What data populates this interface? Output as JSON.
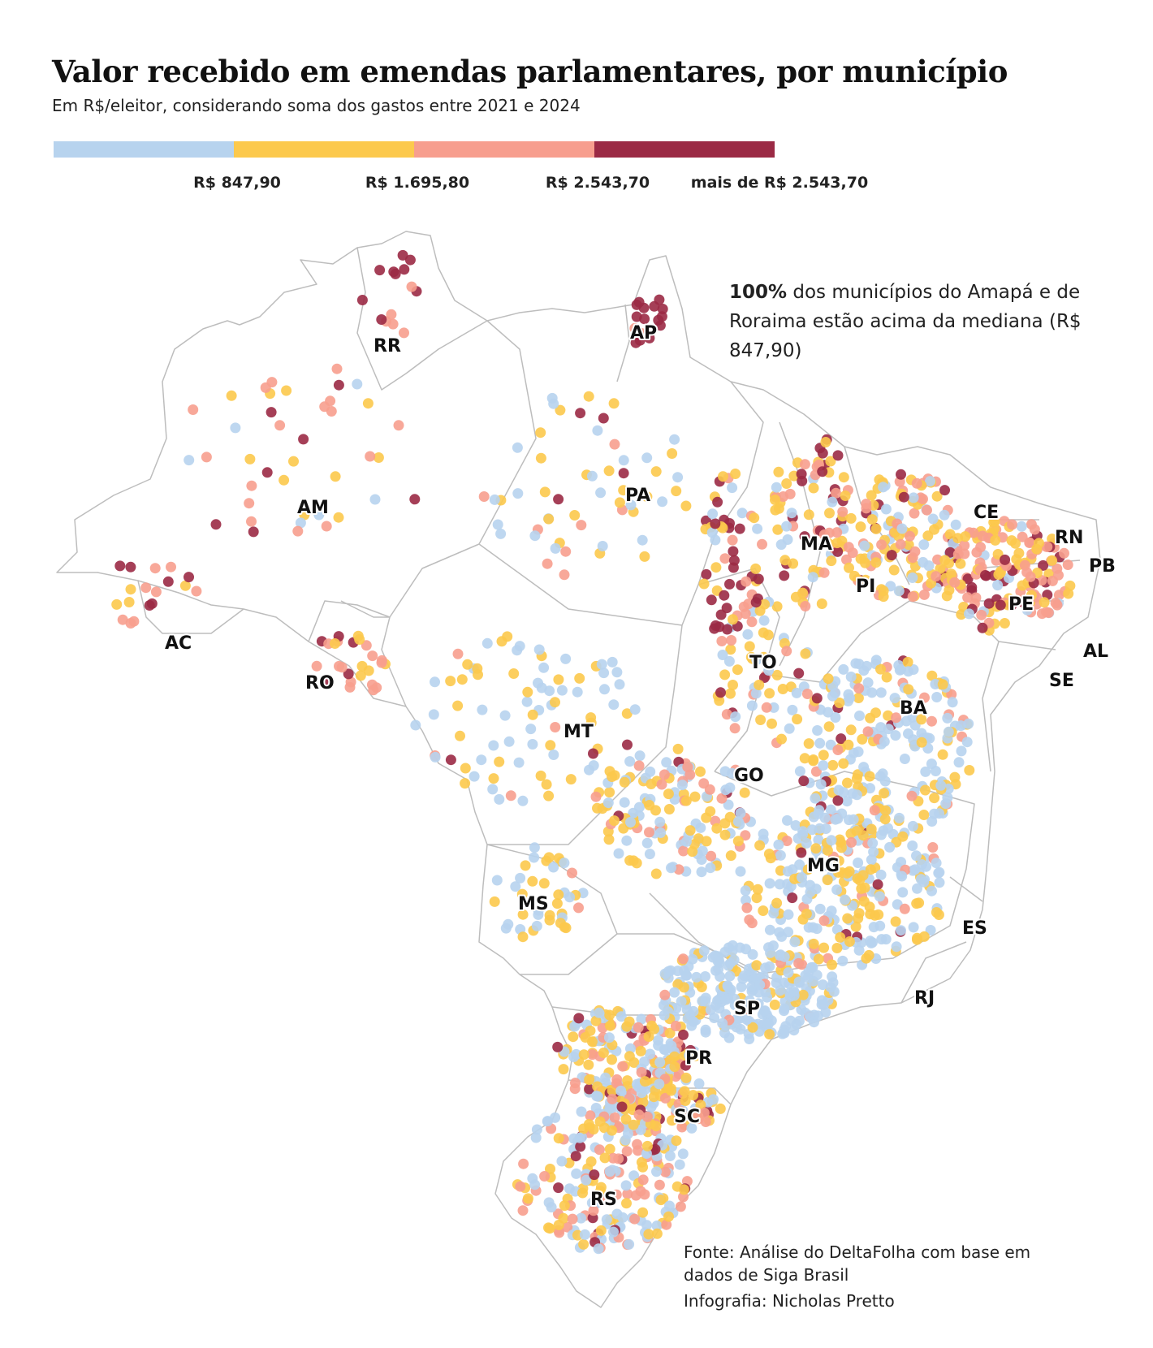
{
  "title": "Valor recebido em emendas parlamentares, por município",
  "subtitle": "Em R$/eleitor, considerando soma dos gastos entre 2021 e 2024",
  "legend": {
    "colors": [
      "#b7d3ee",
      "#fcc94d",
      "#f79e8e",
      "#9b2a45"
    ],
    "labels": [
      "R$ 847,90",
      "R$ 1.695,80",
      "R$ 2.543,70",
      "mais de R$ 2.543,70"
    ]
  },
  "annotation": {
    "bold": "100%",
    "text": " dos municípios do Amapá e de Roraima estão acima da mediana (R$ 847,90)"
  },
  "states": {
    "RR": "RR",
    "AP": "AP",
    "AM": "AM",
    "PA": "PA",
    "MA": "MA",
    "CE": "CE",
    "RN": "RN",
    "PB": "PB",
    "PI": "PI",
    "PE": "PE",
    "AL": "AL",
    "SE": "SE",
    "AC": "AC",
    "RO": "RO",
    "TO": "TO",
    "BA": "BA",
    "MT": "MT",
    "GO": "GO",
    "MG": "MG",
    "ES": "ES",
    "MS": "MS",
    "RJ": "RJ",
    "SP": "SP",
    "PR": "PR",
    "SC": "SC",
    "RS": "RS"
  },
  "source": "Fonte: Análise do DeltaFolha com base em dados de Siga Brasil",
  "credit": "Infografia: Nicholas Pretto"
}
